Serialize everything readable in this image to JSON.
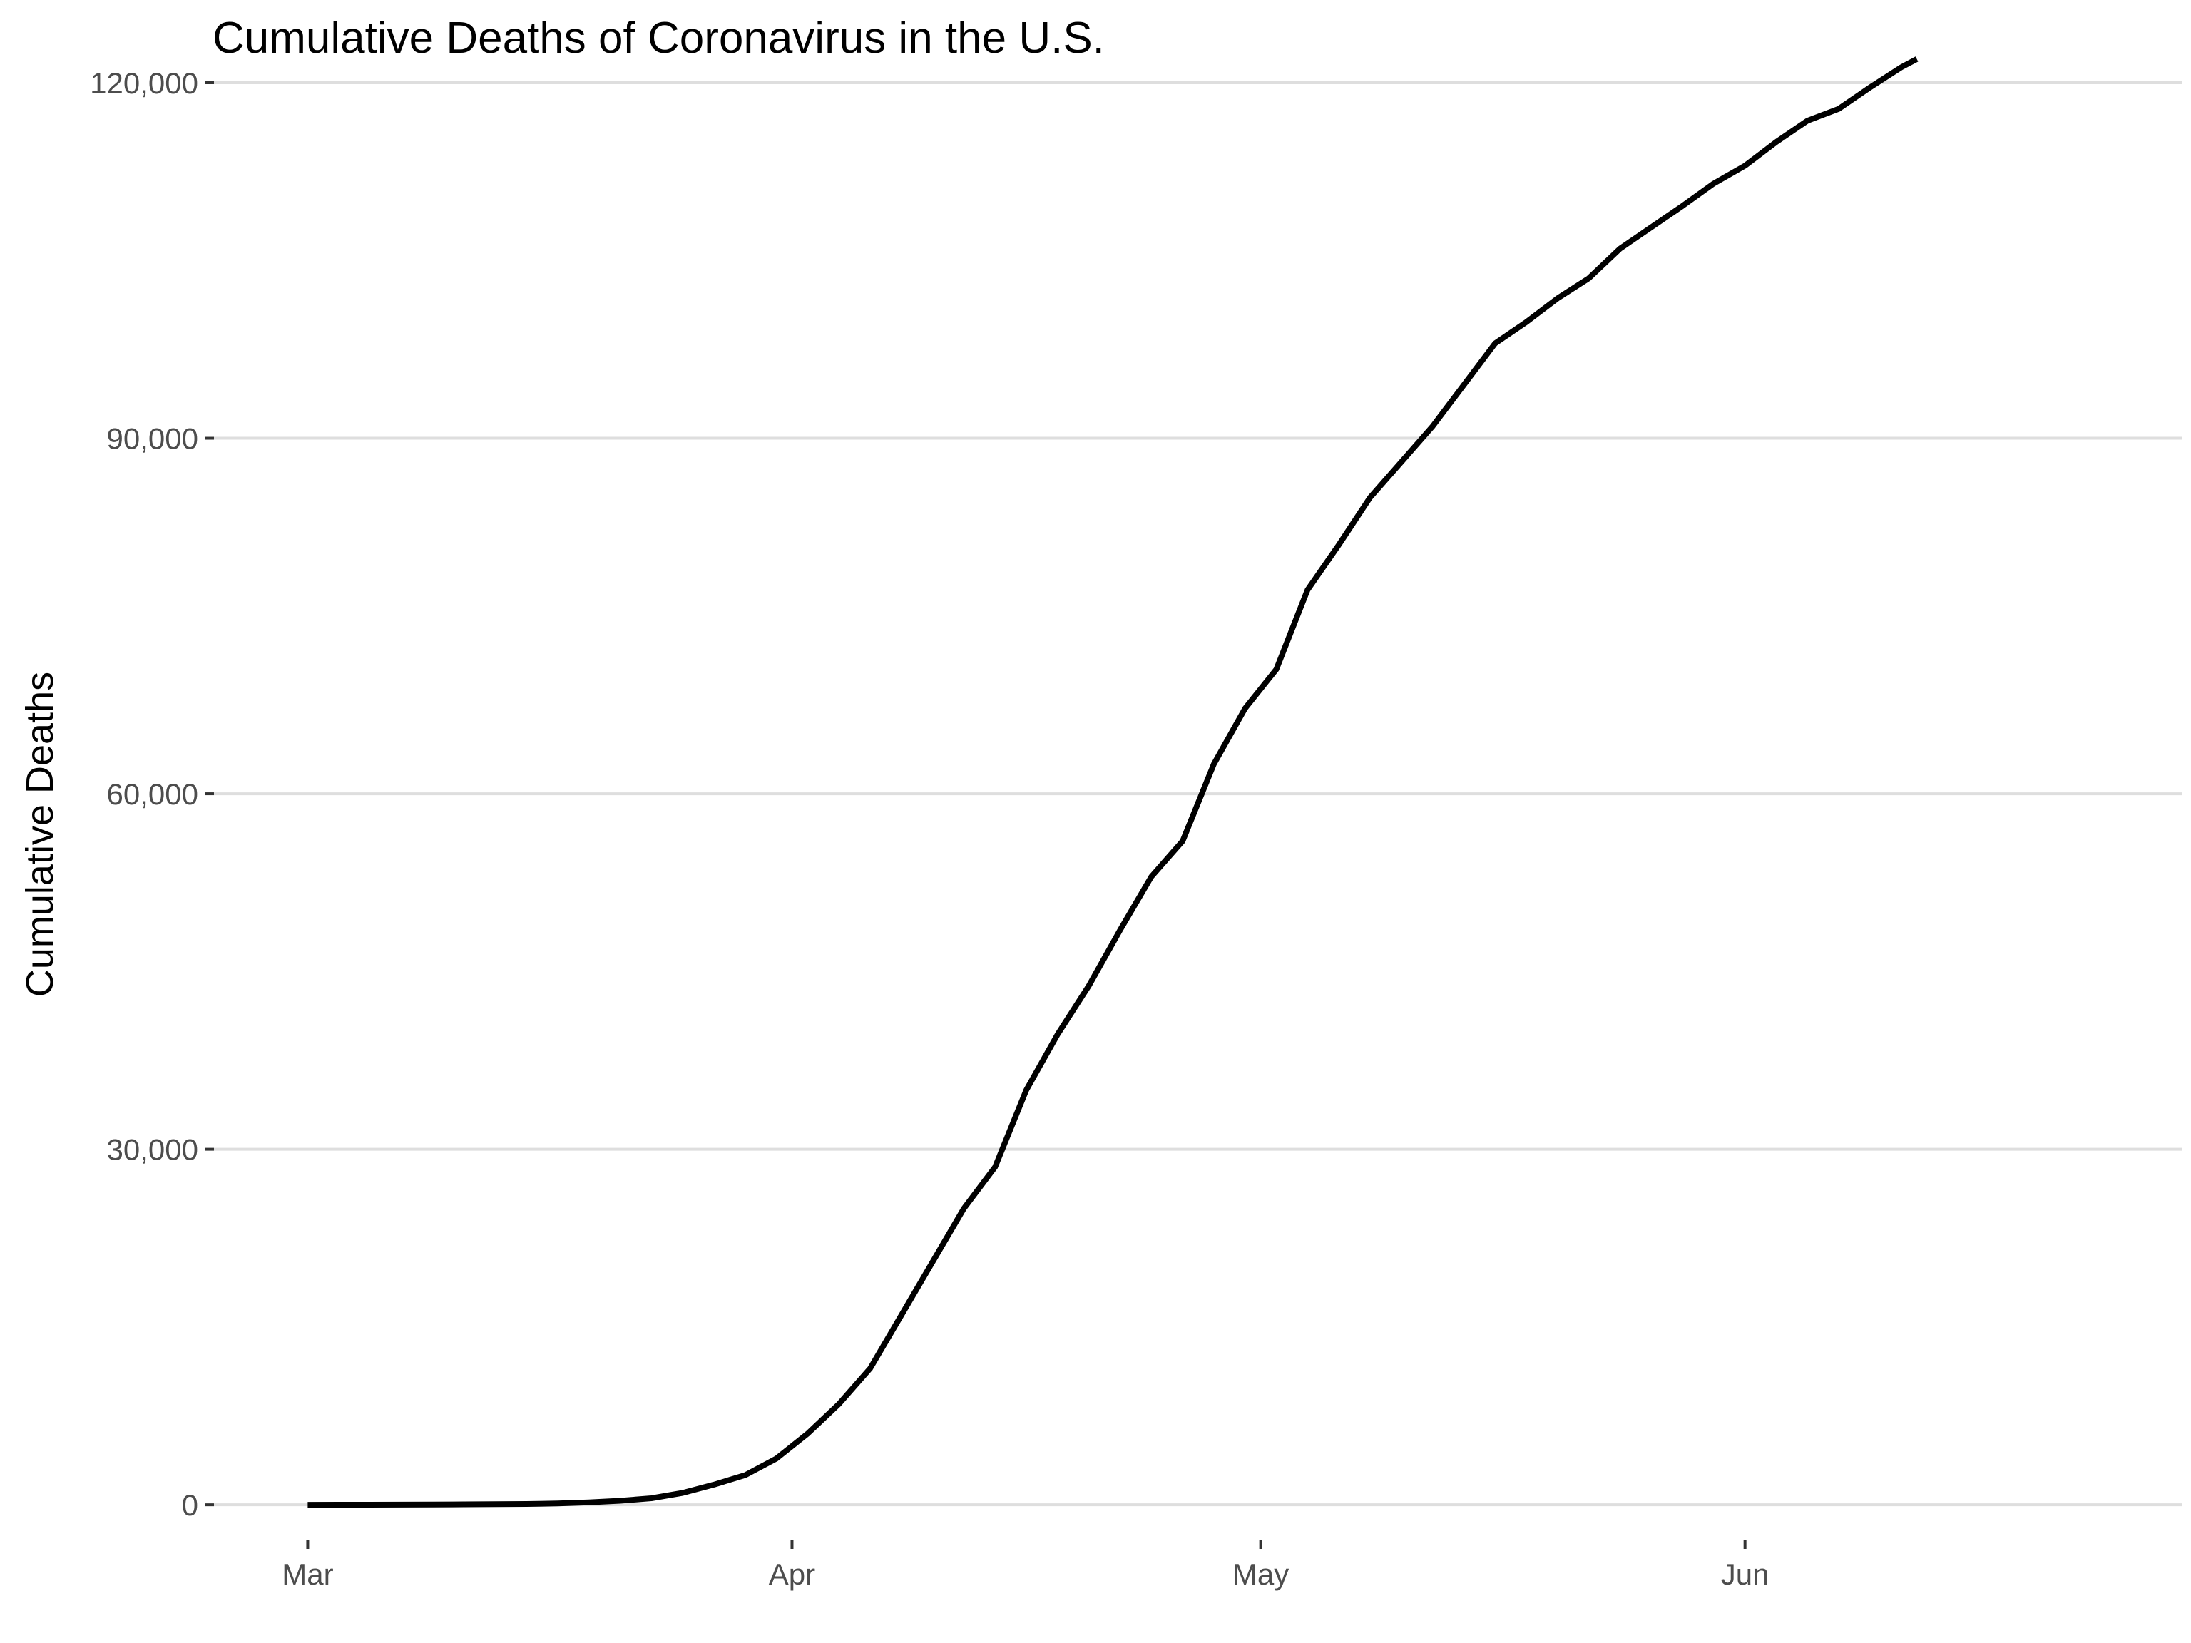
{
  "chart_data": {
    "type": "line",
    "title": "Cumulative Deaths of Coronavirus in the U.S.",
    "xlabel": "",
    "ylabel": "Cumulative Deaths",
    "x_tick_labels": [
      "Mar",
      "Apr",
      "May",
      "Jun"
    ],
    "x_tick_dates": [
      "2020-03-01",
      "2020-04-01",
      "2020-05-01",
      "2020-06-01"
    ],
    "y_tick_labels": [
      "0",
      "30,000",
      "60,000",
      "90,000",
      "120,000"
    ],
    "y_ticks": [
      0,
      30000,
      60000,
      90000,
      120000
    ],
    "xlim": [
      "2020-02-24",
      "2020-06-29"
    ],
    "ylim": [
      -3000,
      120000
    ],
    "grid": "horizontal major gridlines only",
    "line_color": "#000000",
    "series": [
      {
        "x": [
          "2020-03-01",
          "2020-03-03",
          "2020-03-05",
          "2020-03-07",
          "2020-03-09",
          "2020-03-11",
          "2020-03-13",
          "2020-03-15",
          "2020-03-17",
          "2020-03-19",
          "2020-03-21",
          "2020-03-23",
          "2020-03-25",
          "2020-03-27",
          "2020-03-29",
          "2020-03-31",
          "2020-04-02",
          "2020-04-04",
          "2020-04-06",
          "2020-04-08",
          "2020-04-10",
          "2020-04-12",
          "2020-04-14",
          "2020-04-16",
          "2020-04-18",
          "2020-04-20",
          "2020-04-22",
          "2020-04-24",
          "2020-04-26",
          "2020-04-28",
          "2020-04-30",
          "2020-05-02",
          "2020-05-04",
          "2020-05-06",
          "2020-05-08",
          "2020-05-10",
          "2020-05-12",
          "2020-05-14",
          "2020-05-16",
          "2020-05-18",
          "2020-05-20",
          "2020-05-22",
          "2020-05-24",
          "2020-05-26",
          "2020-05-28",
          "2020-05-30",
          "2020-06-01",
          "2020-06-03",
          "2020-06-05",
          "2020-06-07",
          "2020-06-09",
          "2020-06-11",
          "2020-06-12"
        ],
        "y": [
          1,
          6,
          11,
          17,
          22,
          38,
          50,
          70,
          110,
          200,
          340,
          550,
          1000,
          1700,
          2500,
          3900,
          6000,
          8500,
          11500,
          16000,
          20500,
          25000,
          28500,
          35000,
          39700,
          43800,
          48500,
          53000,
          56000,
          62500,
          67200,
          70500,
          77200,
          81000,
          85000,
          88000,
          91000,
          94500,
          98000,
          99800,
          101800,
          103500,
          106000,
          107800,
          109600,
          111500,
          113000,
          115000,
          116800,
          117800,
          119600,
          121300,
          122000
        ]
      }
    ]
  }
}
